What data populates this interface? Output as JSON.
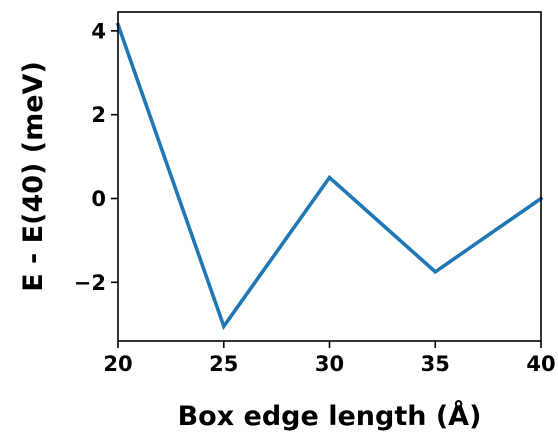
{
  "chart_data": {
    "type": "line",
    "title": "",
    "xlabel": "Box edge length (Å)",
    "ylabel": "E - E(40) (meV)",
    "x": [
      20,
      25,
      30,
      35,
      40
    ],
    "series": [
      {
        "values": [
          4.15,
          -3.05,
          0.5,
          -1.75,
          0.0
        ],
        "color": "#1f77b4"
      }
    ],
    "xlim": [
      20,
      40
    ],
    "ylim": [
      -3.4,
      4.45
    ],
    "xticks": [
      20,
      25,
      30,
      35,
      40
    ],
    "xtick_labels": [
      "20",
      "25",
      "30",
      "35",
      "40"
    ],
    "yticks": [
      4,
      2,
      0,
      -2
    ],
    "ytick_labels": [
      "4",
      "2",
      "0",
      "−2"
    ],
    "grid": false,
    "legend": "none"
  }
}
